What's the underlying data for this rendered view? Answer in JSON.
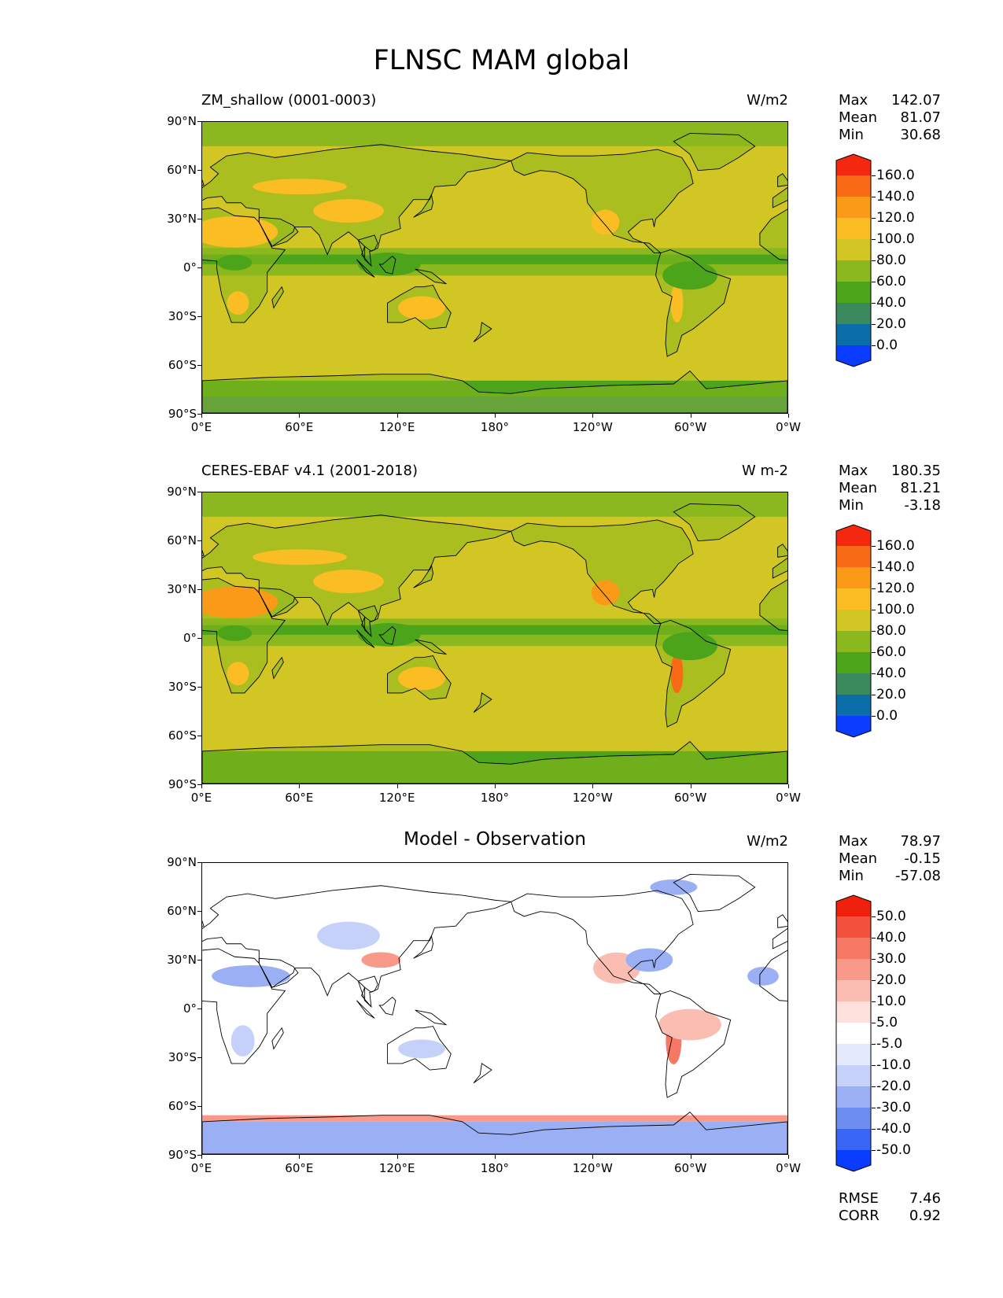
{
  "title": "FLNSC MAM global",
  "lat_ticks": [
    "90°N",
    "60°N",
    "30°N",
    "0°",
    "30°S",
    "60°S",
    "90°S"
  ],
  "lon_ticks": [
    "0°E",
    "60°E",
    "120°E",
    "180°",
    "120°W",
    "60°W",
    "0°W"
  ],
  "panels": [
    {
      "title": "ZM_shallow (0001-0003)",
      "units": "W/m2",
      "stats": [
        {
          "label": "Max",
          "value": "142.07"
        },
        {
          "label": "Mean",
          "value": "81.07"
        },
        {
          "label": "Min",
          "value": "30.68"
        }
      ],
      "colorbar_labels": [
        "160.0",
        "140.0",
        "120.0",
        "100.0",
        "80.0",
        "60.0",
        "40.0",
        "20.0",
        "0.0"
      ]
    },
    {
      "title": "CERES-EBAF v4.1 (2001-2018)",
      "units": "W m-2",
      "stats": [
        {
          "label": "Max",
          "value": "180.35"
        },
        {
          "label": "Mean",
          "value": "81.21"
        },
        {
          "label": "Min",
          "value": "-3.18"
        }
      ],
      "colorbar_labels": [
        "160.0",
        "140.0",
        "120.0",
        "100.0",
        "80.0",
        "60.0",
        "40.0",
        "20.0",
        "0.0"
      ]
    },
    {
      "title": "Model - Observation",
      "units": "W/m2",
      "stats": [
        {
          "label": "Max",
          "value": "78.97"
        },
        {
          "label": "Mean",
          "value": "-0.15"
        },
        {
          "label": "Min",
          "value": "-57.08"
        }
      ],
      "colorbar_labels": [
        "50.0",
        "40.0",
        "30.0",
        "20.0",
        "10.0",
        "5.0",
        "-5.0",
        "-10.0",
        "-20.0",
        "-30.0",
        "-40.0",
        "-50.0"
      ],
      "footer_stats": [
        {
          "label": "RMSE",
          "value": "7.46"
        },
        {
          "label": "CORR",
          "value": "0.92"
        }
      ]
    }
  ],
  "chart_data": [
    {
      "type": "heatmap",
      "title": "ZM_shallow (0001-0003)",
      "units": "W/m2",
      "xlim": [
        0,
        360
      ],
      "ylim": [
        -90,
        90
      ],
      "levels": [
        0,
        20,
        40,
        60,
        80,
        100,
        120,
        140,
        160
      ],
      "colors": [
        "#0a3cff",
        "#0b6ea8",
        "#3a8a5e",
        "#4ca41a",
        "#8bb81e",
        "#d2c624",
        "#fbbd24",
        "#fb9a19",
        "#f86a16",
        "#f3280f"
      ],
      "stats": {
        "max": 142.07,
        "mean": 81.07,
        "min": 30.68
      }
    },
    {
      "type": "heatmap",
      "title": "CERES-EBAF v4.1 (2001-2018)",
      "units": "W m-2",
      "xlim": [
        0,
        360
      ],
      "ylim": [
        -90,
        90
      ],
      "levels": [
        0,
        20,
        40,
        60,
        80,
        100,
        120,
        140,
        160
      ],
      "colors": [
        "#0a3cff",
        "#0b6ea8",
        "#3a8a5e",
        "#4ca41a",
        "#8bb81e",
        "#d2c624",
        "#fbbd24",
        "#fb9a19",
        "#f86a16",
        "#f3280f"
      ],
      "stats": {
        "max": 180.35,
        "mean": 81.21,
        "min": -3.18
      }
    },
    {
      "type": "heatmap",
      "title": "Model - Observation",
      "units": "W/m2",
      "xlim": [
        0,
        360
      ],
      "ylim": [
        -90,
        90
      ],
      "levels": [
        -50,
        -40,
        -30,
        -20,
        -10,
        -5,
        5,
        10,
        20,
        30,
        40,
        50
      ],
      "colors": [
        "#0a3cff",
        "#3a66f5",
        "#6e8df1",
        "#9bb0f4",
        "#c5d1f8",
        "#e4e9fb",
        "#ffffff",
        "#fde0db",
        "#fbbcb1",
        "#f8998a",
        "#f47863",
        "#f2523d",
        "#f0210c"
      ],
      "stats": {
        "max": 78.97,
        "mean": -0.15,
        "min": -57.08,
        "rmse": 7.46,
        "corr": 0.92
      }
    }
  ]
}
